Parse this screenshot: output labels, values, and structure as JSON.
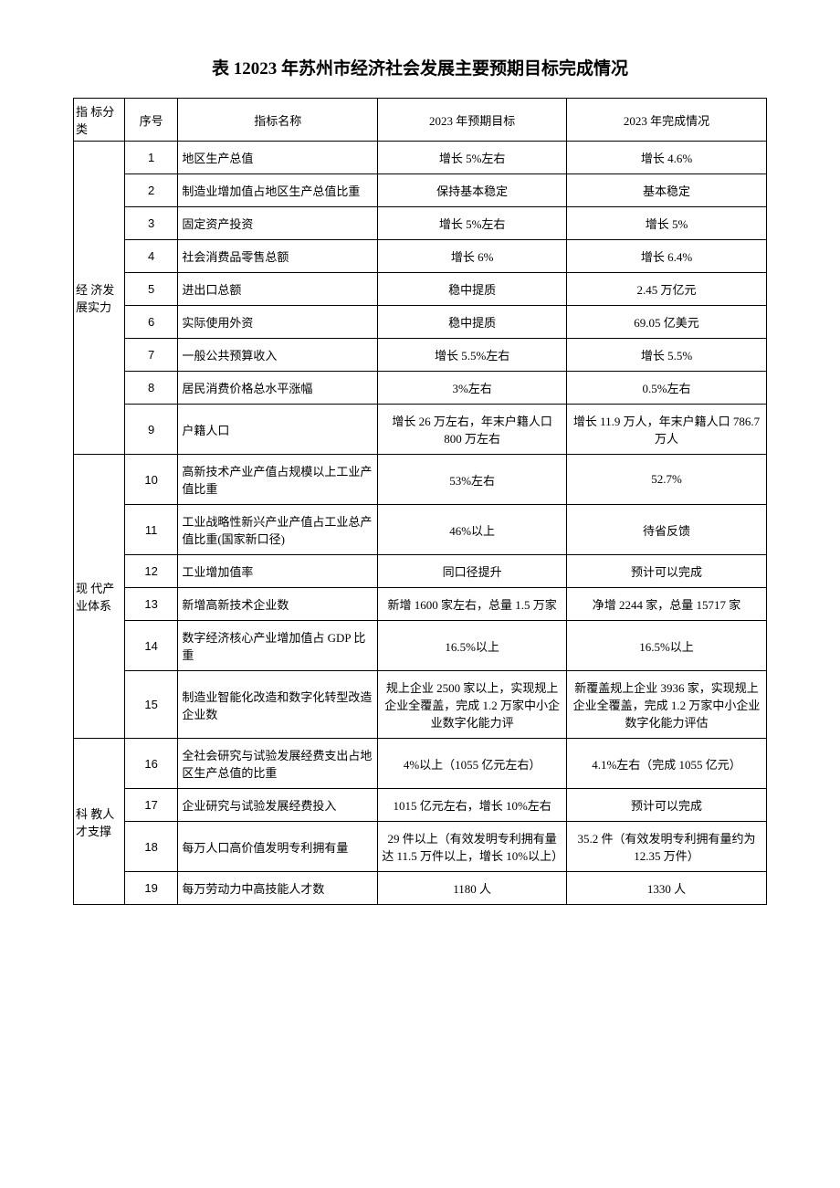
{
  "title": "表 12023 年苏州市经济社会发展主要预期目标完成情况",
  "headers": {
    "category": "指 标分类",
    "num": "序号",
    "name": "指标名称",
    "target": "2023 年预期目标",
    "result": "2023 年完成情况"
  },
  "categories": [
    {
      "label": "经 济发 展实力",
      "rowspan": 9,
      "rows": [
        {
          "num": "1",
          "name": "地区生产总值",
          "target": "增长 5%左右",
          "result": "增长 4.6%"
        },
        {
          "num": "2",
          "name": "制造业增加值占地区生产总值比重",
          "target": "保持基本稳定",
          "result": "基本稳定"
        },
        {
          "num": "3",
          "name": "固定资产投资",
          "target": "增长 5%左右",
          "result": "增长 5%"
        },
        {
          "num": "4",
          "name": "社会消费品零售总额",
          "target": "增长 6%",
          "result": "增长 6.4%"
        },
        {
          "num": "5",
          "name": "进出口总额",
          "target": "稳中提质",
          "result": "2.45 万亿元"
        },
        {
          "num": "6",
          "name": "实际使用外资",
          "target": "稳中提质",
          "result": "69.05 亿美元"
        },
        {
          "num": "7",
          "name": "一般公共预算收入",
          "target": "增长 5.5%左右",
          "result": "增长 5.5%"
        },
        {
          "num": "8",
          "name": "居民消费价格总水平涨幅",
          "target": "3%左右",
          "result": "0.5%左右"
        },
        {
          "num": "9",
          "name": "户籍人口",
          "target": "增长 26 万左右，年末户籍人口 800 万左右",
          "result": "增长 11.9 万人，年末户籍人口 786.7 万人"
        }
      ]
    },
    {
      "label": "现 代产 业体系",
      "rowspan": 6,
      "rows": [
        {
          "num": "10",
          "name": "高新技术产业产值占规模以上工业产值比重",
          "target": "53%左右",
          "result": "52.7%"
        },
        {
          "num": "11",
          "name": "工业战略性新兴产业产值占工业总产值比重(国家新口径)",
          "target": "46%以上",
          "result": "待省反馈"
        },
        {
          "num": "12",
          "name": "工业增加值率",
          "target": "同口径提升",
          "result": "预计可以完成"
        },
        {
          "num": "13",
          "name": "新增高新技术企业数",
          "target": "新增 1600 家左右，总量 1.5 万家",
          "result": "净增 2244 家，总量 15717 家"
        },
        {
          "num": "14",
          "name": "数字经济核心产业增加值占 GDP 比重",
          "target": "16.5%以上",
          "result": "16.5%以上"
        },
        {
          "num": "15",
          "name": "制造业智能化改造和数字化转型改造企业数",
          "target": "规上企业 2500 家以上，实现规上企业全覆盖，完成 1.2 万家中小企业数字化能力评",
          "result": "新覆盖规上企业 3936 家，实现规上企业全覆盖，完成 1.2 万家中小企业数字化能力评估"
        }
      ]
    },
    {
      "label": "科 教人 才支撑",
      "rowspan": 4,
      "rows": [
        {
          "num": "16",
          "name": "全社会研究与试验发展经费支出占地区生产总值的比重",
          "target": "4%以上（1055 亿元左右）",
          "result": "4.1%左右（完成 1055 亿元）"
        },
        {
          "num": "17",
          "name": "企业研究与试验发展经费投入",
          "target": "1015 亿元左右，增长 10%左右",
          "result": "预计可以完成"
        },
        {
          "num": "18",
          "name": "每万人口高价值发明专利拥有量",
          "target": "29 件以上（有效发明专利拥有量达 11.5 万件以上，增长 10%以上）",
          "result": "35.2 件（有效发明专利拥有量约为 12.35 万件）"
        },
        {
          "num": "19",
          "name": "每万劳动力中高技能人才数",
          "target": "1180 人",
          "result": "1330 人"
        }
      ]
    }
  ],
  "colors": {
    "background": "#ffffff",
    "text": "#000000",
    "border": "#000000"
  },
  "typography": {
    "title_fontsize": 19,
    "body_fontsize": 13,
    "font_family": "SimSun"
  }
}
